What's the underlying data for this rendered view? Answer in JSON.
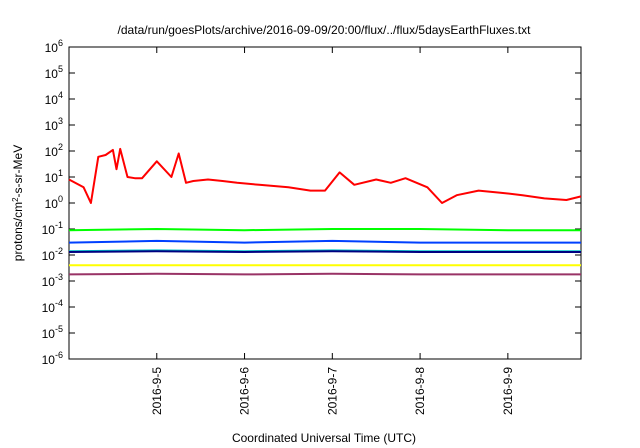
{
  "chart_data": {
    "type": "line",
    "title": "/data/run/goesPlots/archive/2016-09-09/20:00/flux/../flux/5daysEarthFluxes.txt",
    "xlabel": "Coordinated Universal Time (UTC)",
    "ylabel": "protons/cm2-s-sr-MeV",
    "y_scale": "log",
    "xlim": [
      "2016-09-04T00:00",
      "2016-09-09T20:00"
    ],
    "ylim": [
      1e-06,
      1000000.0
    ],
    "x_ticks": [
      "2016-9-5",
      "2016-9-6",
      "2016-9-7",
      "2016-9-8",
      "2016-9-9"
    ],
    "y_ticks": [
      {
        "base": "10",
        "exp": "-6"
      },
      {
        "base": "10",
        "exp": "-5"
      },
      {
        "base": "10",
        "exp": "-4"
      },
      {
        "base": "10",
        "exp": "-3"
      },
      {
        "base": "10",
        "exp": "-2"
      },
      {
        "base": "10",
        "exp": "-1"
      },
      {
        "base": "10",
        "exp": "0"
      },
      {
        "base": "10",
        "exp": "1"
      },
      {
        "base": "10",
        "exp": "2"
      },
      {
        "base": "10",
        "exp": "3"
      },
      {
        "base": "10",
        "exp": "4"
      },
      {
        "base": "10",
        "exp": "5"
      },
      {
        "base": "10",
        "exp": "6"
      }
    ],
    "grid": false,
    "legend": "none",
    "series": [
      {
        "color": "#ff0000",
        "x": [
          "2016-09-04T00:00",
          "2016-09-04T04:00",
          "2016-09-04T06:00",
          "2016-09-04T08:00",
          "2016-09-04T10:00",
          "2016-09-04T12:00",
          "2016-09-04T13:00",
          "2016-09-04T14:00",
          "2016-09-04T16:00",
          "2016-09-04T18:00",
          "2016-09-04T20:00",
          "2016-09-05T00:00",
          "2016-09-05T04:00",
          "2016-09-05T06:00",
          "2016-09-05T08:00",
          "2016-09-05T10:00",
          "2016-09-05T14:00",
          "2016-09-05T18:00",
          "2016-09-05T22:00",
          "2016-09-06T04:00",
          "2016-09-06T12:00",
          "2016-09-06T18:00",
          "2016-09-06T22:00",
          "2016-09-07T02:00",
          "2016-09-07T06:00",
          "2016-09-07T12:00",
          "2016-09-07T16:00",
          "2016-09-07T20:00",
          "2016-09-08T02:00",
          "2016-09-08T06:00",
          "2016-09-08T10:00",
          "2016-09-08T16:00",
          "2016-09-08T22:00",
          "2016-09-09T04:00",
          "2016-09-09T10:00",
          "2016-09-09T16:00",
          "2016-09-09T20:00"
        ],
        "y": [
          8,
          4,
          1,
          60,
          70,
          110,
          20,
          120,
          10,
          9,
          9,
          40,
          10,
          80,
          6,
          7,
          8,
          7,
          6,
          5,
          4,
          3,
          3,
          15,
          5,
          8,
          6,
          9,
          4,
          1,
          2,
          3,
          2.5,
          2,
          1.5,
          1.3,
          1.8
        ]
      },
      {
        "color": "#00ff00",
        "x": [
          "2016-09-04T00:00",
          "2016-09-05T00:00",
          "2016-09-06T00:00",
          "2016-09-07T00:00",
          "2016-09-08T00:00",
          "2016-09-09T00:00",
          "2016-09-09T20:00"
        ],
        "y": [
          0.09,
          0.1,
          0.09,
          0.1,
          0.1,
          0.09,
          0.09
        ]
      },
      {
        "color": "#0040ff",
        "x": [
          "2016-09-04T00:00",
          "2016-09-05T00:00",
          "2016-09-06T00:00",
          "2016-09-07T00:00",
          "2016-09-08T00:00",
          "2016-09-09T00:00",
          "2016-09-09T20:00"
        ],
        "y": [
          0.03,
          0.035,
          0.03,
          0.035,
          0.03,
          0.03,
          0.03
        ]
      },
      {
        "color": "#00c8c8",
        "x": [
          "2016-09-04T00:00",
          "2016-09-05T00:00",
          "2016-09-06T00:00",
          "2016-09-07T00:00",
          "2016-09-08T00:00",
          "2016-09-09T00:00",
          "2016-09-09T20:00"
        ],
        "y": [
          0.014,
          0.015,
          0.014,
          0.015,
          0.014,
          0.014,
          0.014
        ]
      },
      {
        "color": "#000080",
        "x": [
          "2016-09-04T00:00",
          "2016-09-05T00:00",
          "2016-09-06T00:00",
          "2016-09-07T00:00",
          "2016-09-08T00:00",
          "2016-09-09T00:00",
          "2016-09-09T20:00"
        ],
        "y": [
          0.013,
          0.014,
          0.013,
          0.014,
          0.013,
          0.013,
          0.013
        ]
      },
      {
        "color": "#ffff00",
        "x": [
          "2016-09-04T00:00",
          "2016-09-05T00:00",
          "2016-09-06T00:00",
          "2016-09-07T00:00",
          "2016-09-08T00:00",
          "2016-09-09T00:00",
          "2016-09-09T20:00"
        ],
        "y": [
          0.004,
          0.004,
          0.004,
          0.004,
          0.004,
          0.004,
          0.004
        ]
      },
      {
        "color": "#993366",
        "x": [
          "2016-09-04T00:00",
          "2016-09-05T00:00",
          "2016-09-06T00:00",
          "2016-09-07T00:00",
          "2016-09-08T00:00",
          "2016-09-09T00:00",
          "2016-09-09T20:00"
        ],
        "y": [
          0.0018,
          0.0019,
          0.0018,
          0.0019,
          0.0018,
          0.0018,
          0.0018
        ]
      }
    ]
  }
}
